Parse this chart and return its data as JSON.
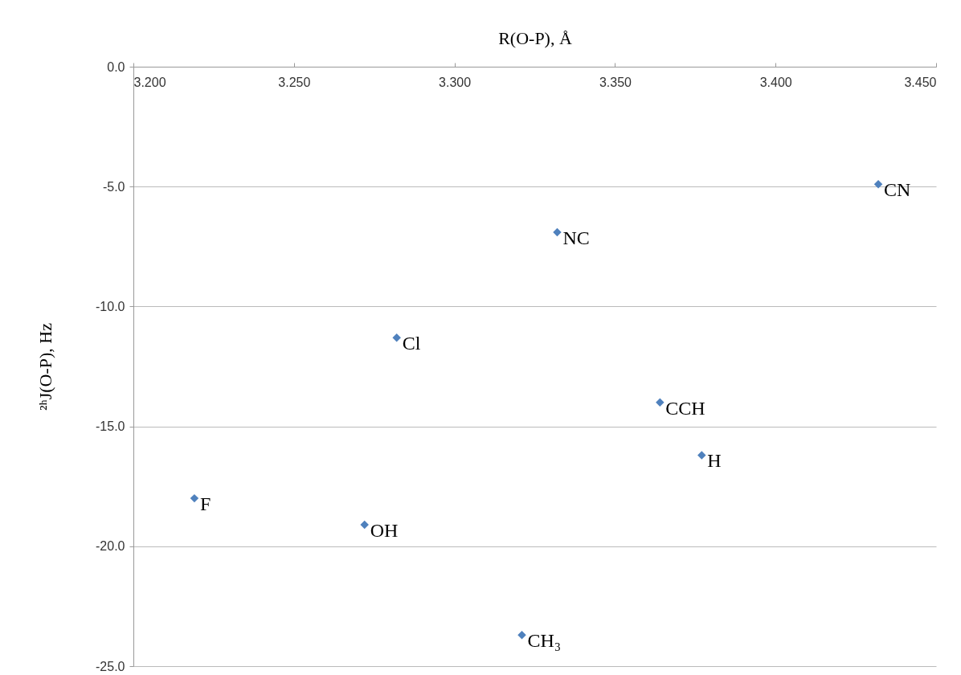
{
  "chart_data": {
    "type": "scatter",
    "xlabel": "R(O-P), Å",
    "ylabel": "²ʰJ(O-P), Hz",
    "x": [
      3.432,
      3.332,
      3.282,
      3.364,
      3.377,
      3.219,
      3.272,
      3.321
    ],
    "series": [
      {
        "color": "#4f81bd",
        "values": [
          -4.9,
          -6.9,
          -11.3,
          -14.0,
          -16.2,
          -18.0,
          -19.1,
          -23.7
        ]
      }
    ],
    "xlim": [
      3.2,
      3.45
    ],
    "xticks": [
      {
        "value": 3.2,
        "label": "3.200"
      },
      {
        "value": 3.25,
        "label": "3.250"
      },
      {
        "value": 3.3,
        "label": "3.300"
      },
      {
        "value": 3.35,
        "label": "3.350"
      },
      {
        "value": 3.4,
        "label": "3.400"
      },
      {
        "value": 3.45,
        "label": "3.450"
      }
    ],
    "ylim": [
      -25,
      0
    ],
    "yticks": [
      {
        "value": 0,
        "label": "0.0"
      },
      {
        "value": -5,
        "label": "-5.0"
      },
      {
        "value": -10,
        "label": "-10.0"
      },
      {
        "value": -15,
        "label": "-15.0"
      },
      {
        "value": -20,
        "label": "-20.0"
      },
      {
        "value": -25,
        "label": "-25.0"
      }
    ],
    "grid": "y",
    "marker": "diamond",
    "annotations": [
      {
        "text": "CN",
        "x": 3.432,
        "y": -4.9
      },
      {
        "text": "NC",
        "x": 3.332,
        "y": -6.9
      },
      {
        "text": "Cl",
        "x": 3.282,
        "y": -11.3
      },
      {
        "text": "CCH",
        "x": 3.364,
        "y": -14.0
      },
      {
        "text": "H",
        "x": 3.377,
        "y": -16.2
      },
      {
        "text": "F",
        "x": 3.219,
        "y": -18.0
      },
      {
        "text": "OH",
        "x": 3.272,
        "y": -19.1
      },
      {
        "text": "CH₃",
        "x": 3.321,
        "y": -23.7
      }
    ]
  }
}
